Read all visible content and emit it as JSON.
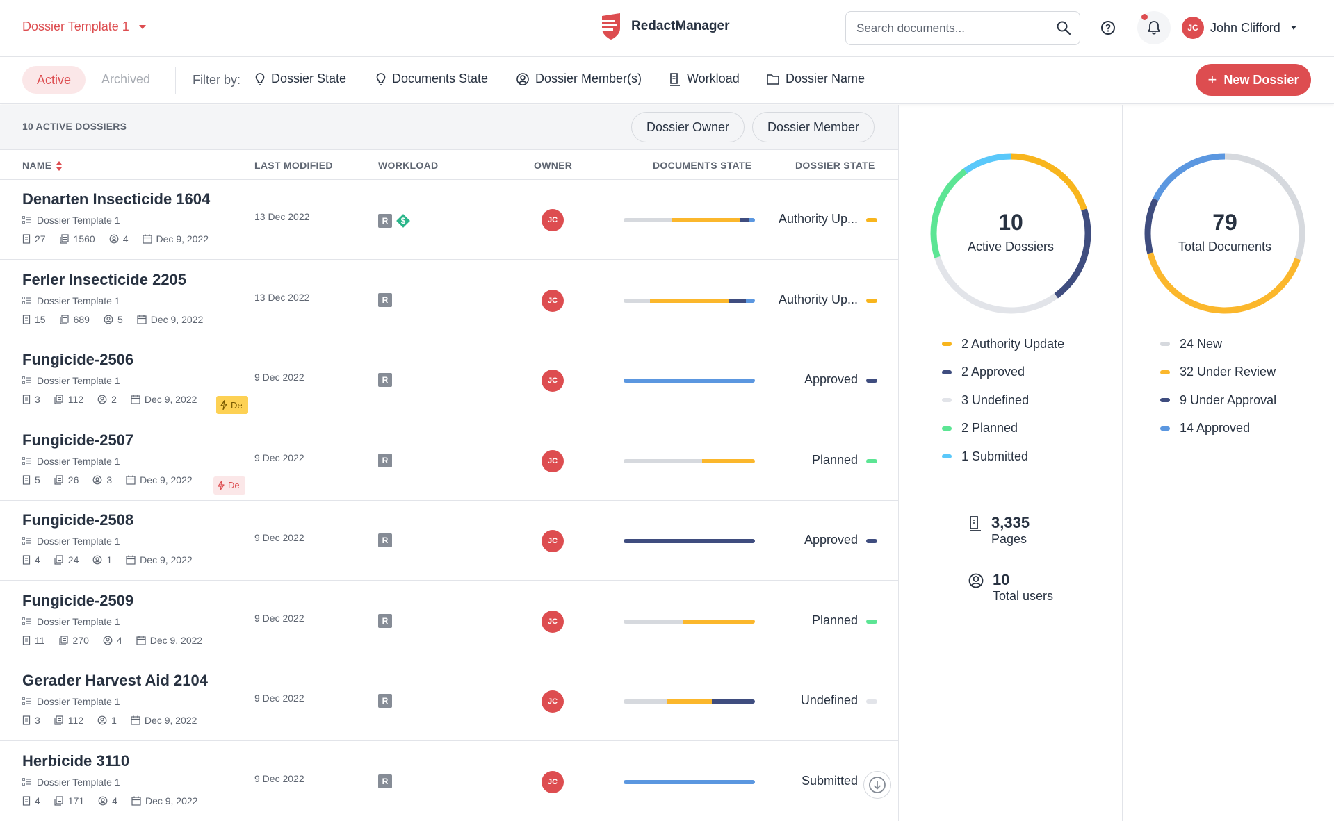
{
  "header": {
    "template_select": "Dossier Template 1",
    "brand": "RedactManager",
    "search_placeholder": "Search documents...",
    "user": {
      "initials": "JC",
      "name": "John Clifford"
    }
  },
  "filters": {
    "tab_active": "Active",
    "tab_archived": "Archived",
    "filter_by": "Filter by:",
    "buttons": [
      "Dossier State",
      "Documents State",
      "Dossier Member(s)",
      "Workload",
      "Dossier Name"
    ],
    "new_dossier": "New Dossier"
  },
  "list": {
    "count_label": "10 ACTIVE DOSSIERS",
    "quick_filters": [
      "Dossier Owner",
      "Dossier Member"
    ],
    "columns": {
      "name": "NAME",
      "last_modified": "LAST MODIFIED",
      "workload": "WORKLOAD",
      "owner": "OWNER",
      "documents_state": "DOCUMENTS STATE",
      "dossier_state": "DOSSIER STATE"
    },
    "rows": [
      {
        "name": "Denarten Insecticide 1604",
        "template": "Dossier Template 1",
        "docs": "27",
        "pages": "1560",
        "members": "4",
        "created": "Dec 9, 2022",
        "modified": "13 Dec 2022",
        "workload": [
          "R",
          "$"
        ],
        "owner": "JC",
        "bar": [
          {
            "c": "#d6d9de",
            "w": 37
          },
          {
            "c": "#fbb72c",
            "w": 52
          },
          {
            "c": "#3f4d7f",
            "w": 7
          },
          {
            "c": "#5b97e0",
            "w": 4
          }
        ],
        "state": "Authority Up...",
        "state_color": "#f8b51d",
        "deadline": null
      },
      {
        "name": "Ferler Insecticide 2205",
        "template": "Dossier Template 1",
        "docs": "15",
        "pages": "689",
        "members": "5",
        "created": "Dec 9, 2022",
        "modified": "13 Dec 2022",
        "workload": [
          "R"
        ],
        "owner": "JC",
        "bar": [
          {
            "c": "#d6d9de",
            "w": 20
          },
          {
            "c": "#fbb72c",
            "w": 60
          },
          {
            "c": "#3f4d7f",
            "w": 13
          },
          {
            "c": "#5b97e0",
            "w": 7
          }
        ],
        "state": "Authority Up...",
        "state_color": "#f8b51d",
        "deadline": null
      },
      {
        "name": "Fungicide-2506",
        "template": "Dossier Template 1",
        "docs": "3",
        "pages": "112",
        "members": "2",
        "created": "Dec 9, 2022",
        "modified": "9 Dec 2022",
        "workload": [
          "R"
        ],
        "owner": "JC",
        "bar": [
          {
            "c": "#5b97e0",
            "w": 100
          }
        ],
        "state": "Approved",
        "state_color": "#3f4d7f",
        "deadline": {
          "text": "De",
          "kind": "warn"
        }
      },
      {
        "name": "Fungicide-2507",
        "template": "Dossier Template 1",
        "docs": "5",
        "pages": "26",
        "members": "3",
        "created": "Dec 9, 2022",
        "modified": "9 Dec 2022",
        "workload": [
          "R"
        ],
        "owner": "JC",
        "bar": [
          {
            "c": "#d6d9de",
            "w": 60
          },
          {
            "c": "#fbb72c",
            "w": 40
          }
        ],
        "state": "Planned",
        "state_color": "#5ce594",
        "deadline": {
          "text": "De",
          "kind": "err"
        }
      },
      {
        "name": "Fungicide-2508",
        "template": "Dossier Template 1",
        "docs": "4",
        "pages": "24",
        "members": "1",
        "created": "Dec 9, 2022",
        "modified": "9 Dec 2022",
        "workload": [
          "R"
        ],
        "owner": "JC",
        "bar": [
          {
            "c": "#3f4d7f",
            "w": 100
          }
        ],
        "state": "Approved",
        "state_color": "#3f4d7f",
        "deadline": null
      },
      {
        "name": "Fungicide-2509",
        "template": "Dossier Template 1",
        "docs": "11",
        "pages": "270",
        "members": "4",
        "created": "Dec 9, 2022",
        "modified": "9 Dec 2022",
        "workload": [
          "R"
        ],
        "owner": "JC",
        "bar": [
          {
            "c": "#d6d9de",
            "w": 45
          },
          {
            "c": "#fbb72c",
            "w": 55
          }
        ],
        "state": "Planned",
        "state_color": "#5ce594",
        "deadline": null
      },
      {
        "name": "Gerader Harvest Aid 2104",
        "template": "Dossier Template 1",
        "docs": "3",
        "pages": "112",
        "members": "1",
        "created": "Dec 9, 2022",
        "modified": "9 Dec 2022",
        "workload": [
          "R"
        ],
        "owner": "JC",
        "bar": [
          {
            "c": "#d6d9de",
            "w": 33
          },
          {
            "c": "#fbb72c",
            "w": 34
          },
          {
            "c": "#3f4d7f",
            "w": 33
          }
        ],
        "state": "Undefined",
        "state_color": "#e2e4e9",
        "deadline": null
      },
      {
        "name": "Herbicide 3110",
        "template": "Dossier Template 1",
        "docs": "4",
        "pages": "171",
        "members": "4",
        "created": "Dec 9, 2022",
        "modified": "9 Dec 2022",
        "workload": [
          "R"
        ],
        "owner": "JC",
        "bar": [
          {
            "c": "#5b97e0",
            "w": 100
          }
        ],
        "state": "Submitted",
        "state_color": "#5ac8fa",
        "deadline": null
      }
    ]
  },
  "stats": {
    "dossiers": {
      "total": "10",
      "label": "Active Dossiers",
      "legend": [
        {
          "label": "2 Authority Update",
          "value": 2,
          "color": "#f8b51d"
        },
        {
          "label": "2 Approved",
          "value": 2,
          "color": "#3f4d7f"
        },
        {
          "label": "3 Undefined",
          "value": 3,
          "color": "#e2e4e9"
        },
        {
          "label": "2 Planned",
          "value": 2,
          "color": "#5ce594"
        },
        {
          "label": "1 Submitted",
          "value": 1,
          "color": "#5ac8fa"
        }
      ]
    },
    "documents": {
      "total": "79",
      "label": "Total Documents",
      "legend": [
        {
          "label": "24 New",
          "value": 24,
          "color": "#d6d9de"
        },
        {
          "label": "32 Under Review",
          "value": 32,
          "color": "#fbb72c"
        },
        {
          "label": "9 Under Approval",
          "value": 9,
          "color": "#3f4d7f"
        },
        {
          "label": "14 Approved",
          "value": 14,
          "color": "#5b97e0"
        }
      ]
    },
    "pages": {
      "value": "3,335",
      "label": "Pages"
    },
    "users": {
      "value": "10",
      "label": "Total users"
    }
  }
}
